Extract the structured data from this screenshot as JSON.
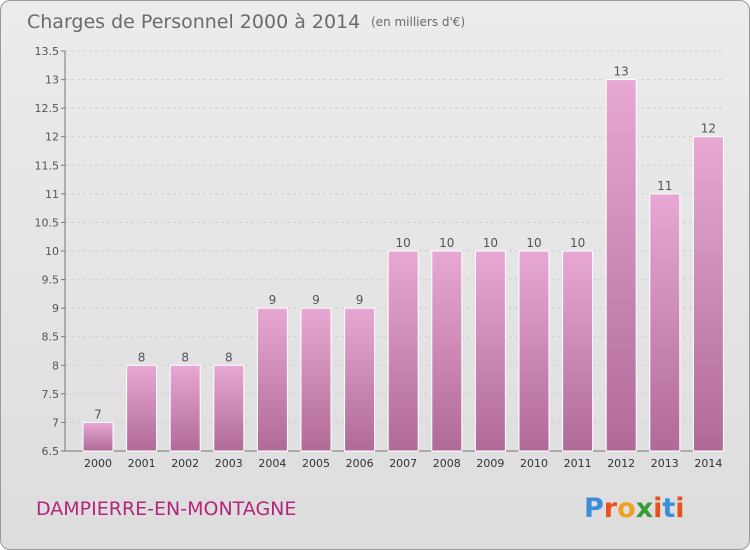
{
  "title": "Charges de Personnel 2000 à 2014",
  "subtitle": "(en milliers d'€)",
  "commune": "DAMPIERRE-EN-MONTAGNE",
  "logo": {
    "text": "Proxiti",
    "letter_colors": [
      "#3a8fd8",
      "#e8501e",
      "#f0a020",
      "#3a9a3a",
      "#e8501e",
      "#3a8fd8",
      "#e8501e"
    ]
  },
  "colors": {
    "bar_top": "#e8a8d4",
    "bar_bottom": "#b06a98",
    "commune": "#b3267a",
    "title": "#6b6b6b"
  },
  "chart_data": {
    "type": "bar",
    "title": "Charges de Personnel 2000 à 2014",
    "subtitle": "(en milliers d'€)",
    "xlabel": "",
    "ylabel": "",
    "categories": [
      "2000",
      "2001",
      "2002",
      "2003",
      "2004",
      "2005",
      "2006",
      "2007",
      "2008",
      "2009",
      "2010",
      "2011",
      "2012",
      "2013",
      "2014"
    ],
    "values": [
      7,
      8,
      8,
      8,
      9,
      9,
      9,
      10,
      10,
      10,
      10,
      10,
      13,
      11,
      12
    ],
    "value_labels": [
      "7",
      "8",
      "8",
      "8",
      "9",
      "9",
      "9",
      "10",
      "10",
      "10",
      "10",
      "10",
      "13",
      "11",
      "12"
    ],
    "ylim": [
      6.5,
      13.5
    ],
    "yticks": [
      6.5,
      7,
      7.5,
      8,
      8.5,
      9,
      9.5,
      10,
      10.5,
      11,
      11.5,
      12,
      12.5,
      13,
      13.5
    ],
    "ytick_labels": [
      "6.5",
      "7",
      "7.5",
      "8",
      "8.5",
      "9",
      "9.5",
      "10",
      "10.5",
      "11",
      "11.5",
      "12",
      "12.5",
      "13",
      "13.5"
    ],
    "grid": true,
    "legend": "none"
  }
}
